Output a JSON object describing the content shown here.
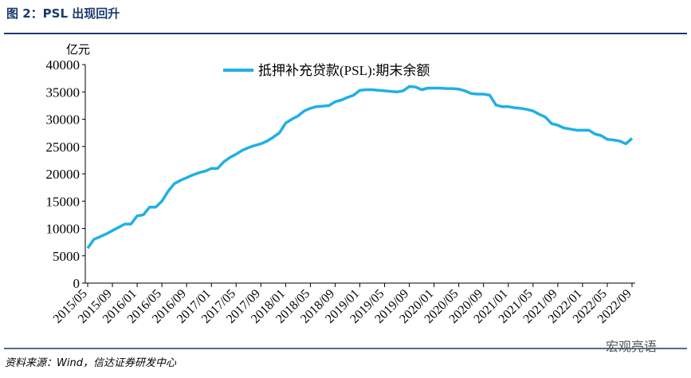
{
  "header": {
    "title": "图 2：PSL 出现回升"
  },
  "chart_data": {
    "type": "line",
    "y_unit": "亿元",
    "categories": [
      "2015/05",
      null,
      null,
      null,
      "2015/09",
      null,
      null,
      null,
      "2016/01",
      null,
      null,
      null,
      "2016/05",
      null,
      null,
      null,
      "2016/09",
      null,
      null,
      null,
      "2017/01",
      null,
      null,
      null,
      "2017/05",
      null,
      null,
      null,
      "2017/09",
      null,
      null,
      null,
      "2018/01",
      null,
      null,
      null,
      "2018/05",
      null,
      null,
      null,
      "2018/09",
      null,
      null,
      null,
      "2019/01",
      null,
      null,
      null,
      "2019/05",
      null,
      null,
      null,
      "2019/09",
      null,
      null,
      null,
      "2020/01",
      null,
      null,
      null,
      "2020/05",
      null,
      null,
      null,
      "2020/09",
      null,
      null,
      null,
      "2021/01",
      null,
      null,
      null,
      "2021/05",
      null,
      null,
      null,
      "2021/09",
      null,
      null,
      null,
      "2022/01",
      null,
      null,
      null,
      "2022/05",
      null,
      null,
      null,
      "2022/09"
    ],
    "series": [
      {
        "name": "抵押补充贷款(PSL):期末余额",
        "color": "#1fb0e6",
        "values": [
          6400,
          8000,
          8500,
          9000,
          9600,
          10200,
          10800,
          10800,
          12300,
          12500,
          13900,
          13900,
          15000,
          16800,
          18200,
          18800,
          19300,
          19800,
          20200,
          20500,
          21000,
          21000,
          22200,
          23000,
          23600,
          24300,
          24800,
          25200,
          25500,
          26000,
          26700,
          27500,
          29300,
          30000,
          30600,
          31500,
          32000,
          32300,
          32400,
          32500,
          33200,
          33500,
          34000,
          34400,
          35300,
          35400,
          35400,
          35300,
          35200,
          35100,
          35000,
          35200,
          36000,
          35900,
          35400,
          35700,
          35700,
          35700,
          35600,
          35600,
          35500,
          35200,
          34700,
          34600,
          34600,
          34400,
          32600,
          32300,
          32300,
          32100,
          32000,
          31800,
          31500,
          30900,
          30400,
          29200,
          28900,
          28400,
          28200,
          28000,
          28000,
          28000,
          27300,
          27000,
          26300,
          26200,
          26000,
          25500,
          26500
        ]
      }
    ],
    "ylim": [
      0,
      40000
    ],
    "yticks": [
      0,
      5000,
      10000,
      15000,
      20000,
      25000,
      30000,
      35000,
      40000
    ],
    "grid": false
  },
  "footer": {
    "source": "资料来源：Wind，信达证券研发中心",
    "watermark": "宏观亮语"
  }
}
